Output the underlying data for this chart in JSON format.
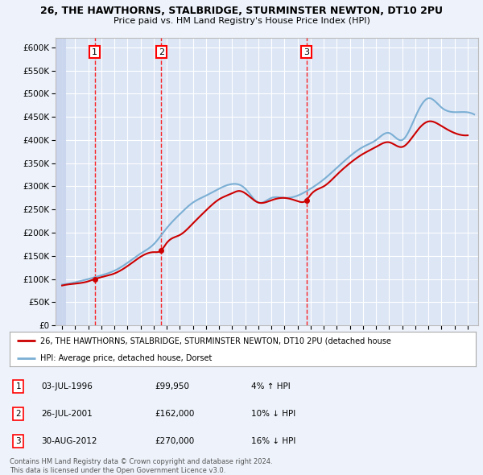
{
  "title1": "26, THE HAWTHORNS, STALBRIDGE, STURMINSTER NEWTON, DT10 2PU",
  "title2": "Price paid vs. HM Land Registry's House Price Index (HPI)",
  "ylim": [
    0,
    620000
  ],
  "yticks": [
    0,
    50000,
    100000,
    150000,
    200000,
    250000,
    300000,
    350000,
    400000,
    450000,
    500000,
    550000,
    600000
  ],
  "ytick_labels": [
    "£0",
    "£50K",
    "£100K",
    "£150K",
    "£200K",
    "£250K",
    "£300K",
    "£350K",
    "£400K",
    "£450K",
    "£500K",
    "£550K",
    "£600K"
  ],
  "xlim_start": 1993.5,
  "xlim_end": 2025.8,
  "purchases": [
    {
      "date": 1996.5,
      "price": 99950,
      "label": "1"
    },
    {
      "date": 2001.58,
      "price": 162000,
      "label": "2"
    },
    {
      "date": 2012.67,
      "price": 270000,
      "label": "3"
    }
  ],
  "legend_property_label": "26, THE HAWTHORNS, STALBRIDGE, STURMINSTER NEWTON, DT10 2PU (detached house",
  "legend_hpi_label": "HPI: Average price, detached house, Dorset",
  "table_rows": [
    {
      "num": "1",
      "date": "03-JUL-1996",
      "price": "£99,950",
      "hpi": "4% ↑ HPI"
    },
    {
      "num": "2",
      "date": "26-JUL-2001",
      "price": "£162,000",
      "hpi": "10% ↓ HPI"
    },
    {
      "num": "3",
      "date": "30-AUG-2012",
      "price": "£270,000",
      "hpi": "16% ↓ HPI"
    }
  ],
  "footer": "Contains HM Land Registry data © Crown copyright and database right 2024.\nThis data is licensed under the Open Government Licence v3.0.",
  "bg_color": "#eef3fb",
  "plot_bg": "#dde6f5",
  "hatch_color": "#c8d4ee",
  "grid_color": "#ffffff",
  "property_line_color": "#cc0000",
  "hpi_line_color": "#7bafd4",
  "marker_color": "#cc0000"
}
